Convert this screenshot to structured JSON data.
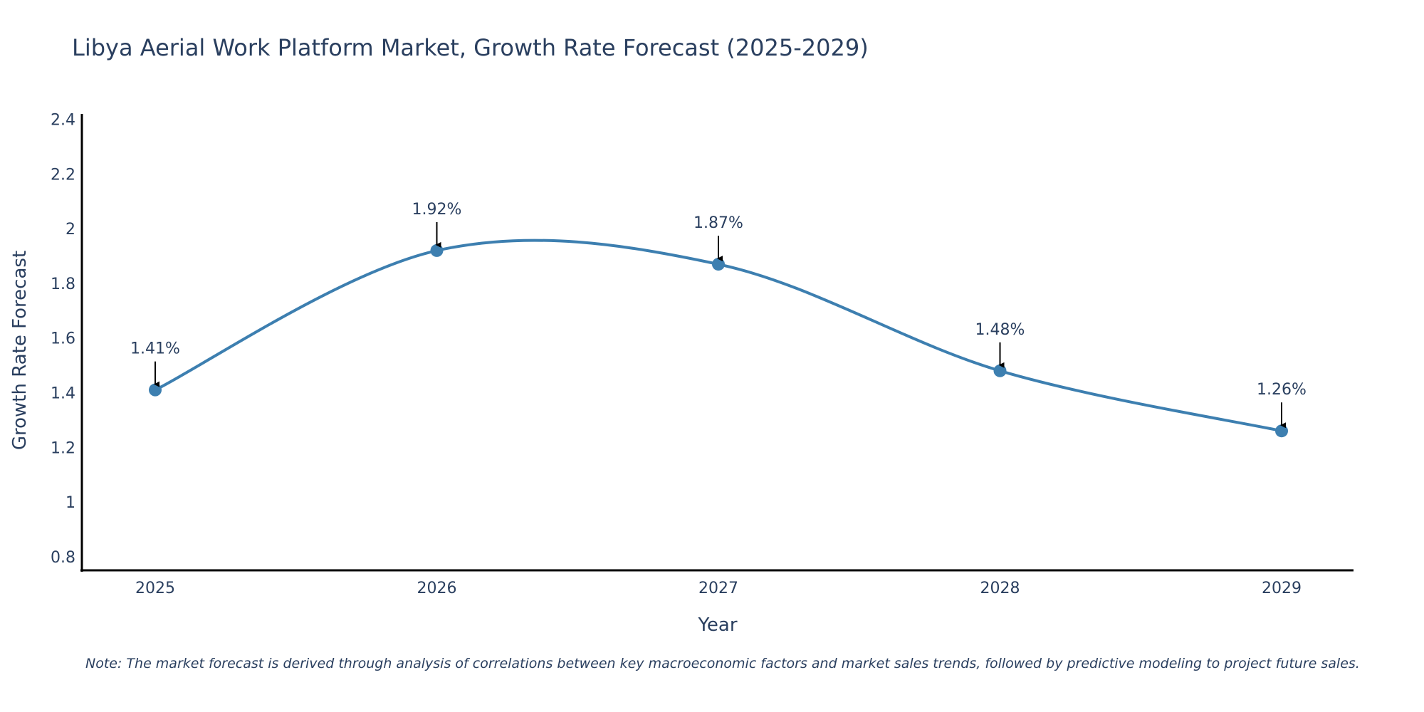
{
  "chart_data": {
    "type": "line",
    "title": "Libya Aerial Work Platform Market, Growth Rate Forecast (2025-2029)",
    "xlabel": "Year",
    "ylabel": "Growth Rate Forecast",
    "categories": [
      "2025",
      "2026",
      "2027",
      "2028",
      "2029"
    ],
    "series": [
      {
        "name": "Growth Rate Forecast",
        "values": [
          1.41,
          1.92,
          1.87,
          1.48,
          1.26
        ],
        "labels": [
          "1.41%",
          "1.92%",
          "1.87%",
          "1.48%",
          "1.26%"
        ],
        "color": "#3d7fb0",
        "smoothing": "spline"
      }
    ],
    "yticks": [
      0.8,
      1,
      1.2,
      1.4,
      1.6,
      1.8,
      2,
      2.2,
      2.4
    ],
    "ytick_labels": [
      "0.8",
      "1",
      "1.2",
      "1.4",
      "1.6",
      "1.8",
      "2",
      "2.2",
      "2.4"
    ],
    "ylim": [
      0.75,
      2.42
    ],
    "grid": false,
    "legend": "none",
    "annotation_style": "arrow-down-to-point"
  },
  "note": "Note: The market forecast is derived through analysis of correlations between key macroeconomic factors and market sales trends, followed by predictive modeling to project future sales."
}
